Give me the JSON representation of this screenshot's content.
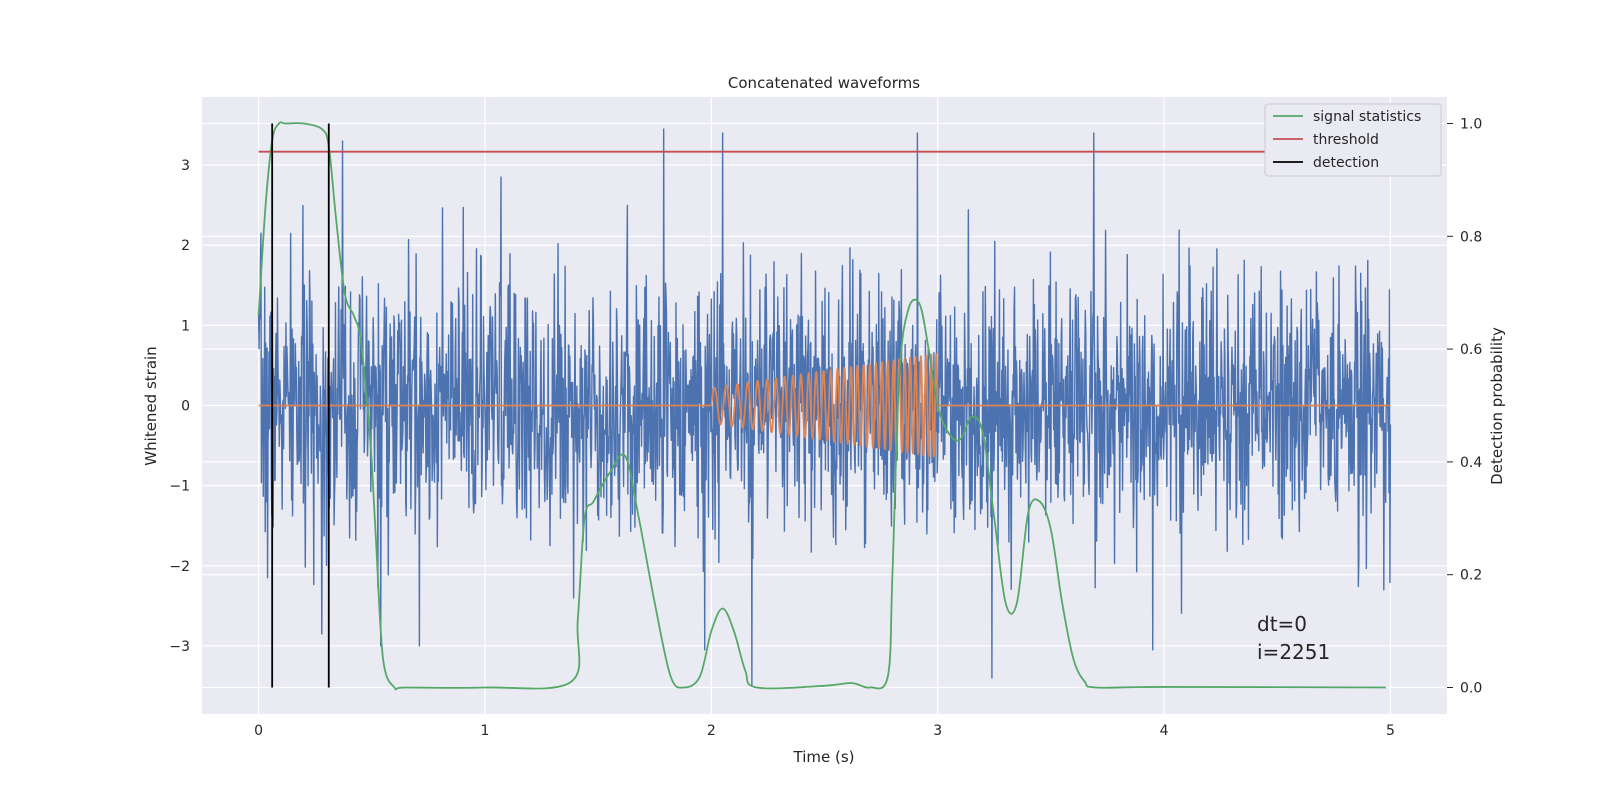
{
  "chart_data": {
    "type": "line",
    "title": "Concatenated waveforms",
    "xlabel": "Time (s)",
    "ylabel": "Whitened strain",
    "y2label": "Detection probability",
    "xlim": [
      -0.25,
      5.25
    ],
    "ylim": [
      -3.85,
      3.85
    ],
    "y2lim": [
      -0.047,
      1.047
    ],
    "xticks": [
      0,
      1,
      2,
      3,
      4,
      5
    ],
    "yticks": [
      -3,
      -2,
      -1,
      0,
      1,
      2,
      3
    ],
    "yticklabels": [
      "−3",
      "−2",
      "−1",
      "0",
      "1",
      "2",
      "3"
    ],
    "y2ticks": [
      0.0,
      0.2,
      0.4,
      0.6,
      0.8,
      1.0
    ],
    "y2ticklabels": [
      "0.0",
      "0.2",
      "0.4",
      "0.6",
      "0.8",
      "1.0"
    ],
    "grid": true,
    "legend_position": "top-right",
    "legend": [
      "signal statistics",
      "threshold",
      "detection"
    ],
    "colors": {
      "strain": "#4c72b0",
      "injection": "#dd8452",
      "statistics": "#55a868",
      "threshold": "#c44e52",
      "detection": "#000000",
      "background": "#eaeaf2",
      "grid": "#ffffff"
    },
    "series": [
      {
        "description": "whitened strain noise (dense, approx. Gaussian, peaks up to ~3.4)",
        "axis": "left",
        "x_range": [
          0,
          5
        ],
        "std": 0.8,
        "peaks": [
          {
            "x": 0.01,
            "y": 2.15
          },
          {
            "x": 0.04,
            "y": -2.15
          },
          {
            "x": 0.28,
            "y": -2.85
          },
          {
            "x": 0.37,
            "y": 3.3
          },
          {
            "x": 0.54,
            "y": -3.0
          },
          {
            "x": 0.71,
            "y": -3.0
          },
          {
            "x": 1.07,
            "y": 2.85
          },
          {
            "x": 1.79,
            "y": 3.45
          },
          {
            "x": 1.97,
            "y": -3.05
          },
          {
            "x": 2.05,
            "y": 3.4
          },
          {
            "x": 2.18,
            "y": -3.5
          },
          {
            "x": 2.91,
            "y": 3.4
          },
          {
            "x": 3.24,
            "y": -3.4
          },
          {
            "x": 3.69,
            "y": 3.4
          },
          {
            "x": 3.95,
            "y": -3.05
          },
          {
            "x": 4.97,
            "y": -2.3
          }
        ]
      },
      {
        "name": "",
        "description": "injected chirp",
        "axis": "left",
        "start": 2.0,
        "end": 3.0,
        "amplitude_start": 0.22,
        "amplitude_end": 0.65,
        "f_start": 18,
        "f_end": 45
      },
      {
        "name": "signal statistics",
        "axis": "right",
        "x": [
          0,
          0.03,
          0.06,
          0.09,
          0.12,
          0.2,
          0.28,
          0.31,
          0.34,
          0.38,
          0.42,
          0.45,
          0.48,
          0.5,
          0.52,
          0.55,
          0.6,
          0.65,
          1.0,
          1.38,
          1.41,
          1.44,
          1.48,
          1.55,
          1.62,
          1.68,
          1.75,
          1.82,
          1.88,
          1.95,
          2.0,
          2.05,
          2.1,
          2.15,
          2.2,
          2.5,
          2.62,
          2.7,
          2.78,
          2.8,
          2.83,
          2.87,
          2.92,
          2.96,
          3.0,
          3.05,
          3.1,
          3.15,
          3.2,
          3.25,
          3.3,
          3.35,
          3.4,
          3.45,
          3.5,
          3.55,
          3.6,
          3.65,
          3.7,
          4.0,
          4.98
        ],
        "y": [
          0.66,
          0.85,
          0.97,
          1.0,
          1.0,
          1.0,
          0.99,
          0.96,
          0.84,
          0.7,
          0.66,
          0.62,
          0.5,
          0.4,
          0.25,
          0.05,
          0.0,
          0.0,
          0.0,
          0.01,
          0.12,
          0.3,
          0.33,
          0.38,
          0.41,
          0.3,
          0.15,
          0.02,
          0.0,
          0.02,
          0.1,
          0.14,
          0.1,
          0.03,
          0.0,
          0.003,
          0.008,
          0.0,
          0.02,
          0.2,
          0.55,
          0.67,
          0.68,
          0.6,
          0.5,
          0.45,
          0.44,
          0.48,
          0.45,
          0.3,
          0.15,
          0.15,
          0.31,
          0.33,
          0.28,
          0.15,
          0.05,
          0.01,
          0.0,
          0.001,
          0.0
        ]
      },
      {
        "name": "threshold",
        "axis": "right",
        "x": [
          0,
          5
        ],
        "y": [
          0.95,
          0.95
        ]
      },
      {
        "name": "detection",
        "axis": "right",
        "x_lines": [
          0.06,
          0.31
        ],
        "y_range": [
          0.0,
          1.0
        ]
      }
    ],
    "annotation": {
      "lines": [
        "dt=0",
        "i=2251"
      ]
    }
  }
}
